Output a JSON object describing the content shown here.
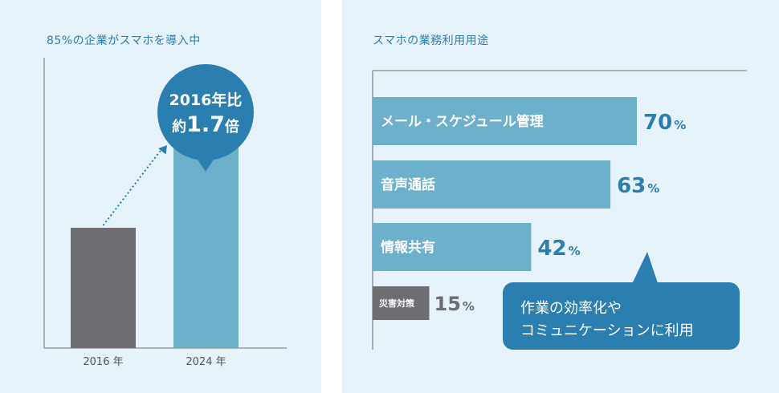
{
  "left": {
    "title": "85%の企業がスマホを導入中",
    "callout": {
      "line1": "2016年比",
      "line2_prefix": "約",
      "line2_value": "1.7",
      "line2_suffix": "倍"
    }
  },
  "right": {
    "title": "スマホの業務利用用途",
    "callout": {
      "line1": "作業の効率化や",
      "line2": "コミュニケーションに利用"
    }
  },
  "colors": {
    "panel_bg": "#e7f3fa",
    "accent": "#2a7fb0",
    "bar_light": "#6db0cc",
    "bar_dark": "#6d6d72",
    "axis": "#8a8a8a"
  },
  "chart_data": [
    {
      "type": "bar",
      "title": "85%の企業がスマホを導入中",
      "categories": [
        "2016 年",
        "2024 年"
      ],
      "values": [
        1.0,
        1.7
      ],
      "ylim": [
        0,
        2.2
      ],
      "xlabel": "",
      "ylabel": "",
      "grid": false
    },
    {
      "type": "bar",
      "orientation": "horizontal",
      "title": "スマホの業務利用用途",
      "categories": [
        "メール・スケジュール管理",
        "音声通話",
        "情報共有",
        "災害対策"
      ],
      "values": [
        70,
        63,
        42,
        15
      ],
      "value_unit": "%",
      "xlim": [
        0,
        100
      ],
      "grid": false
    }
  ]
}
